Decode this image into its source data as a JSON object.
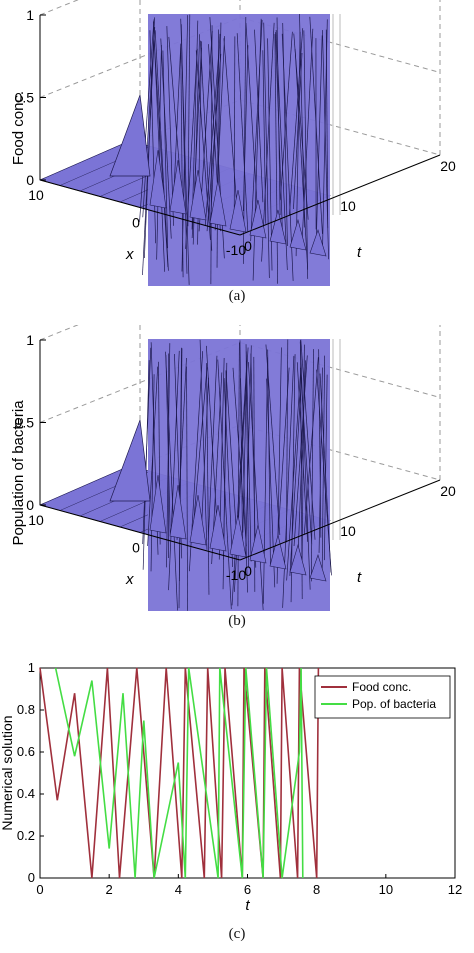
{
  "panels": [
    {
      "id": "a",
      "caption": "(a)",
      "zlabel": "Food conc.",
      "ztick_labels": [
        "0",
        "0.5",
        "1"
      ],
      "xlabel": "x",
      "x_tick_labels": [
        "10",
        "0",
        "-10"
      ],
      "tlabel": "t",
      "t_tick_labels": [
        "0",
        "10",
        "20"
      ],
      "surface_color": "#7b74d6"
    },
    {
      "id": "b",
      "caption": "(b)",
      "zlabel": "Population of bacteria",
      "ztick_labels": [
        "0",
        "0.5",
        "1"
      ],
      "xlabel": "x",
      "x_tick_labels": [
        "10",
        "0",
        "-10"
      ],
      "tlabel": "t",
      "t_tick_labels": [
        "0",
        "10",
        "20"
      ],
      "surface_color": "#7b74d6"
    }
  ],
  "chart_c": {
    "caption": "(c)",
    "xlabel": "t",
    "ylabel": "Numerical solution",
    "x_tick_labels": [
      "0",
      "2",
      "4",
      "6",
      "8",
      "10",
      "12"
    ],
    "y_tick_labels": [
      "0",
      "0.2",
      "0.4",
      "0.6",
      "0.8",
      "1"
    ]
  },
  "chart_data": [
    {
      "type": "surface",
      "zlabel": "Food conc.",
      "xlabel": "x",
      "ylabel": "t",
      "xlim": [
        -10,
        10
      ],
      "tlim": [
        0,
        20
      ],
      "zlim": [
        0,
        1
      ]
    },
    {
      "type": "surface",
      "zlabel": "Population of bacteria",
      "xlabel": "x",
      "ylabel": "t",
      "xlim": [
        -10,
        10
      ],
      "tlim": [
        0,
        20
      ],
      "zlim": [
        0,
        1
      ]
    },
    {
      "type": "line",
      "xlabel": "t",
      "ylabel": "Numerical solution",
      "xlim": [
        0,
        12
      ],
      "ylim": [
        0,
        1
      ],
      "legend_position": "top-right",
      "series": [
        {
          "name": "Food conc.",
          "color": "#a0303c",
          "points": [
            [
              0,
              1
            ],
            [
              0.5,
              0.37
            ],
            [
              1.0,
              0.88
            ],
            [
              1.5,
              0.0
            ],
            [
              1.95,
              1
            ],
            [
              2.3,
              0
            ],
            [
              2.8,
              1
            ],
            [
              3.3,
              0
            ],
            [
              3.65,
              1
            ],
            [
              4.1,
              0
            ],
            [
              4.2,
              1
            ],
            [
              4.75,
              0
            ],
            [
              4.85,
              1
            ],
            [
              5.25,
              0
            ],
            [
              5.35,
              1
            ],
            [
              5.85,
              0
            ],
            [
              5.9,
              1
            ],
            [
              6.45,
              0
            ],
            [
              6.5,
              1
            ],
            [
              6.95,
              0
            ],
            [
              7.0,
              1
            ],
            [
              7.45,
              0
            ],
            [
              7.5,
              1
            ],
            [
              8.0,
              0
            ],
            [
              8.05,
              1
            ]
          ]
        },
        {
          "name": "Pop. of bacteria",
          "color": "#44dd44",
          "points": [
            [
              0.45,
              1
            ],
            [
              1.0,
              0.58
            ],
            [
              1.5,
              0.94
            ],
            [
              2.0,
              0.14
            ],
            [
              2.4,
              0.88
            ],
            [
              2.75,
              0
            ],
            [
              3.0,
              0.75
            ],
            [
              3.3,
              0
            ],
            [
              4.0,
              0.55
            ],
            [
              4.2,
              0
            ],
            [
              4.3,
              1
            ],
            [
              5.15,
              0
            ],
            [
              5.2,
              1
            ],
            [
              5.85,
              0
            ],
            [
              5.95,
              1
            ],
            [
              6.45,
              0
            ],
            [
              6.55,
              1
            ],
            [
              7.0,
              0
            ],
            [
              7.5,
              0.6
            ],
            [
              7.55,
              1
            ],
            [
              7.6,
              0
            ]
          ]
        }
      ]
    }
  ]
}
